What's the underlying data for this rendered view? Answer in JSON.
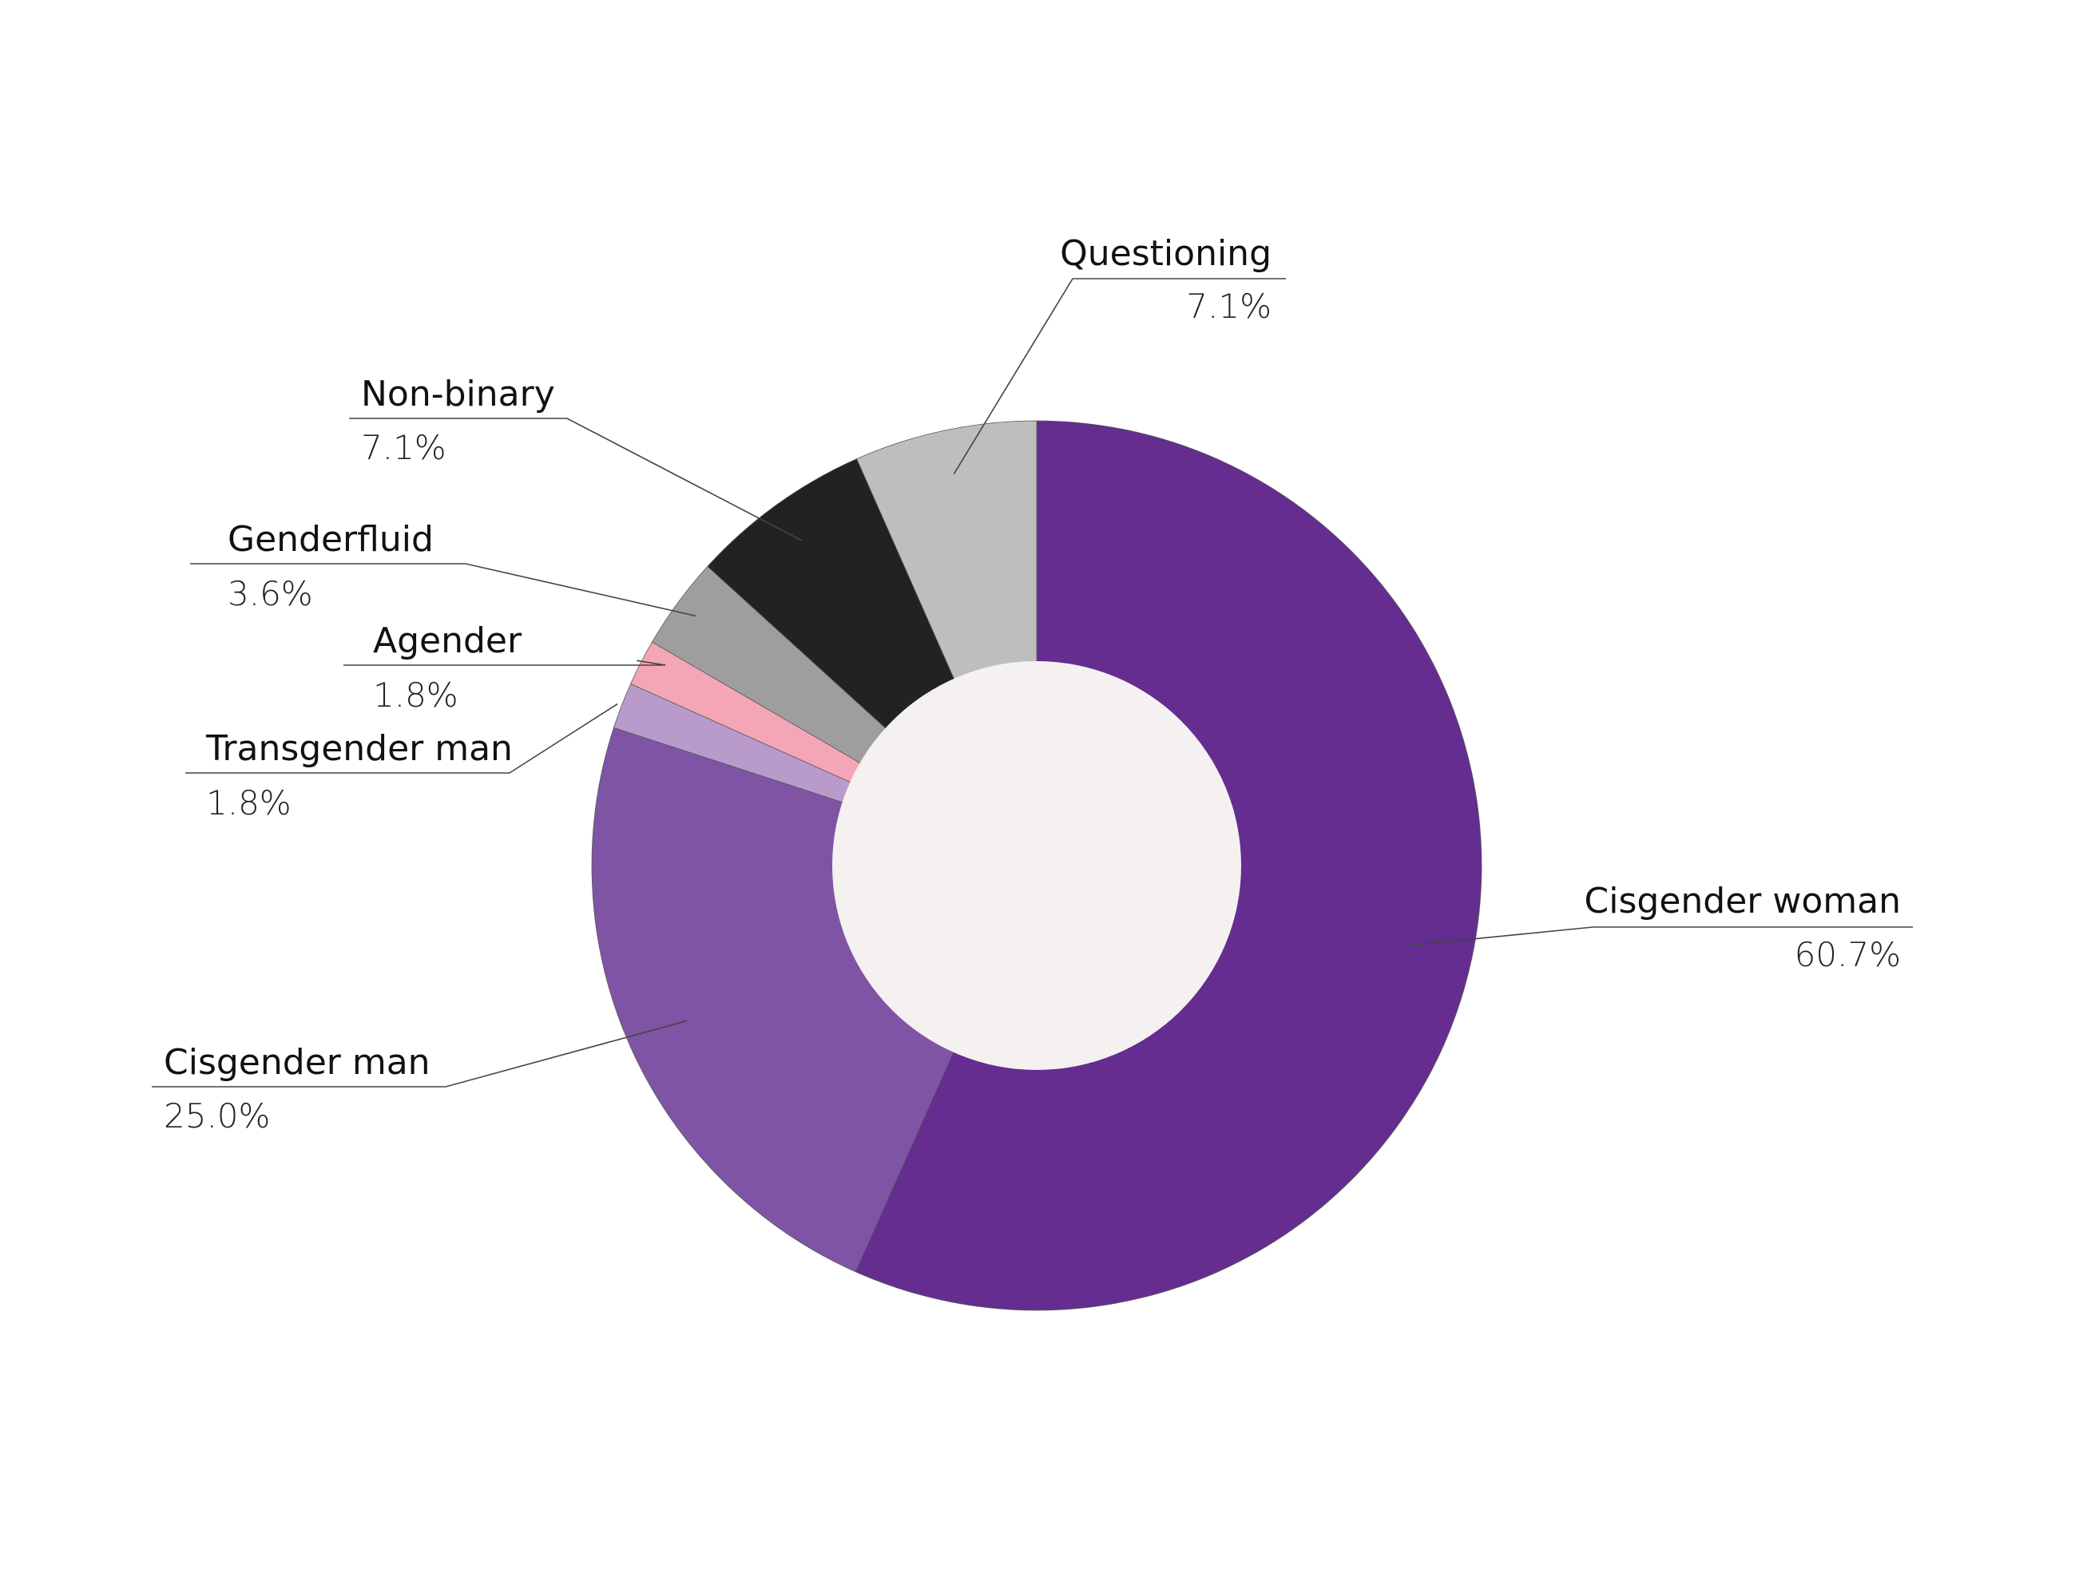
{
  "chart_data": {
    "type": "pie",
    "donut": true,
    "title": "",
    "start_angle_deg": 0,
    "direction": "clockwise",
    "center_fill": "#f5f1f1",
    "slices": [
      {
        "label": "Cisgender woman",
        "value": 60.7,
        "display": "60.7%",
        "color": "#642d8f",
        "label_side": "right"
      },
      {
        "label": "Cisgender man",
        "value": 25.0,
        "display": "25.0%",
        "color": "#7f54a5",
        "label_side": "left"
      },
      {
        "label": "Transgender man",
        "value": 1.8,
        "display": "1.8%",
        "color": "#b89bcb",
        "label_side": "left"
      },
      {
        "label": "Agender",
        "value": 1.8,
        "display": "1.8%",
        "color": "#f4a6b7",
        "label_side": "left"
      },
      {
        "label": "Genderfluid",
        "value": 3.6,
        "display": "3.6%",
        "color": "#9e9e9e",
        "label_side": "left"
      },
      {
        "label": "Non-binary",
        "value": 7.1,
        "display": "7.1%",
        "color": "#222222",
        "label_side": "left"
      },
      {
        "label": "Questioning",
        "value": 7.1,
        "display": "7.1%",
        "color": "#bebebe",
        "label_side": "right"
      }
    ]
  }
}
